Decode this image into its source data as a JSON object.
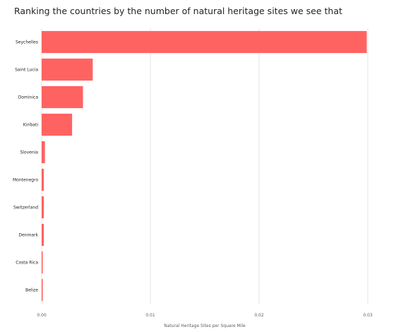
{
  "title": "Ranking the countries by the number of natural heritage sites we see that",
  "chart_data": {
    "type": "bar",
    "orientation": "horizontal",
    "title": "Ranking the countries by the number of natural heritage sites we see that",
    "xlabel": "Natural Heritage Sites per Square Mile",
    "ylabel": "",
    "categories": [
      "Seychelles",
      "Saint Lucia",
      "Dominica",
      "Kiribati",
      "Slovenia",
      "Montenegro",
      "Switzerland",
      "Denmark",
      "Costa Rica",
      "Belize"
    ],
    "values": [
      0.0299,
      0.0047,
      0.0038,
      0.0028,
      0.0003,
      0.0002,
      0.0002,
      0.0002,
      0.0001,
      0.0001
    ],
    "xlim": [
      0,
      0.03
    ],
    "x_ticks": [
      "0.00",
      "0.01",
      "0.02",
      "0.03"
    ],
    "x_tick_values": [
      0,
      0.01,
      0.02,
      0.03
    ],
    "grid": true,
    "color": "#FF6361"
  }
}
